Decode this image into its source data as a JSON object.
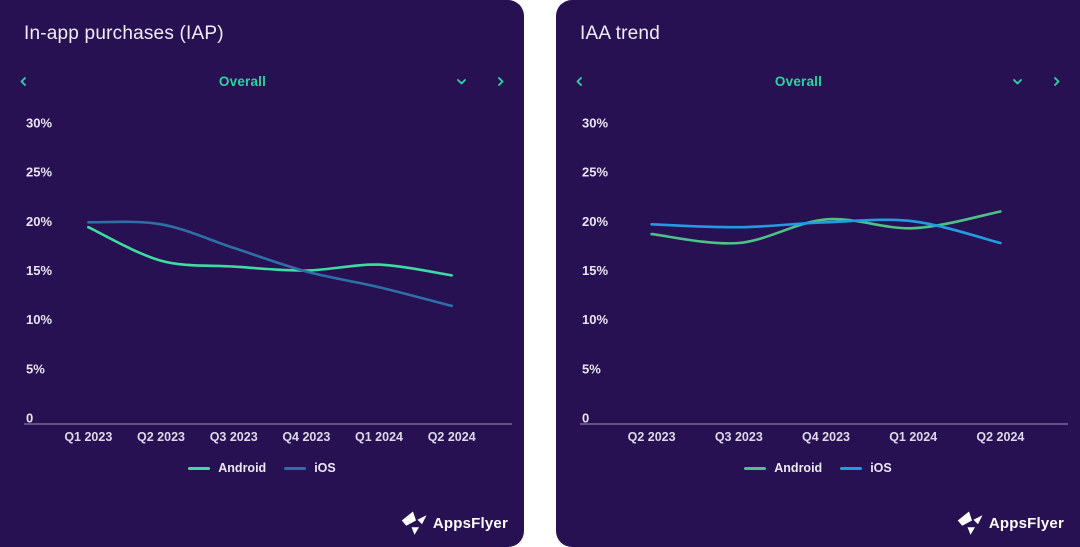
{
  "colors": {
    "panel_background": "#271152",
    "teal_accent": "#2cd3a2",
    "title_text": "#f1edf9",
    "tick_text": "#e9e5f3",
    "axis_line": "#9a93b0",
    "logo_white": "#ffffff"
  },
  "panels": [
    {
      "selector_value": "Overall"
    },
    {
      "selector_value": "Overall"
    }
  ],
  "logo": {
    "text": "AppsFlyer"
  },
  "chart_data": [
    {
      "type": "line",
      "title": "In-app purchases (IAP)",
      "categories": [
        "Q1 2023",
        "Q2 2023",
        "Q3 2023",
        "Q4 2023",
        "Q1 2024",
        "Q2 2024"
      ],
      "series": [
        {
          "name": "Android",
          "color": "#3cdda1",
          "values": [
            19.4,
            16.0,
            15.4,
            15.0,
            15.6,
            14.5
          ]
        },
        {
          "name": "iOS",
          "color": "#2e6fa7",
          "values": [
            19.9,
            19.7,
            17.3,
            14.9,
            13.3,
            11.4
          ]
        }
      ],
      "xlabel": "",
      "ylabel": "",
      "ylim": [
        0,
        30
      ],
      "yticks": [
        {
          "value": 0,
          "label": "0"
        },
        {
          "value": 5,
          "label": "5%"
        },
        {
          "value": 10,
          "label": "10%"
        },
        {
          "value": 15,
          "label": "15%"
        },
        {
          "value": 20,
          "label": "20%"
        },
        {
          "value": 25,
          "label": "25%"
        },
        {
          "value": 30,
          "label": "30%"
        }
      ],
      "grid": false,
      "legend_position": "bottom"
    },
    {
      "type": "line",
      "title": "IAA trend",
      "categories": [
        "Q2 2023",
        "Q3 2023",
        "Q4 2023",
        "Q1 2024",
        "Q2 2024"
      ],
      "series": [
        {
          "name": "Android",
          "color": "#4cc386",
          "values": [
            18.7,
            17.8,
            20.2,
            19.3,
            21.0
          ]
        },
        {
          "name": "iOS",
          "color": "#219ce2",
          "values": [
            19.7,
            19.4,
            19.9,
            20.0,
            17.8
          ]
        }
      ],
      "xlabel": "",
      "ylabel": "",
      "ylim": [
        0,
        30
      ],
      "yticks": [
        {
          "value": 0,
          "label": "0"
        },
        {
          "value": 5,
          "label": "5%"
        },
        {
          "value": 10,
          "label": "10%"
        },
        {
          "value": 15,
          "label": "15%"
        },
        {
          "value": 20,
          "label": "20%"
        },
        {
          "value": 25,
          "label": "25%"
        },
        {
          "value": 30,
          "label": "30%"
        }
      ],
      "grid": false,
      "legend_position": "bottom"
    }
  ]
}
